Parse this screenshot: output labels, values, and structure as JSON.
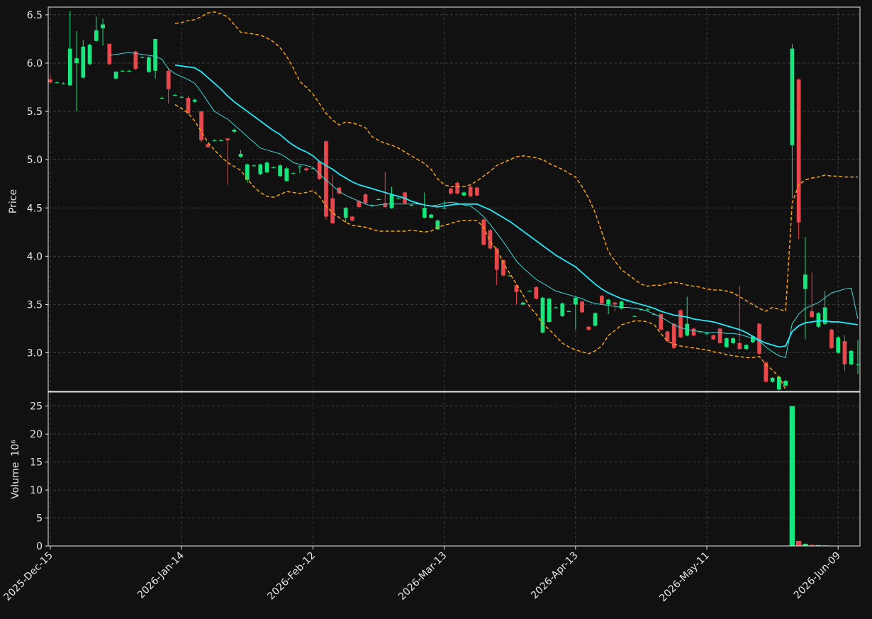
{
  "chart_data": {
    "type": "candlestick",
    "ylabel": "Price",
    "volume_label": "Volume",
    "volume_scale": "10⁶",
    "up_color": "#17e67c",
    "down_color": "#e8474b",
    "grid": true,
    "ylim": [
      2.6,
      6.58
    ],
    "yticks": [
      {
        "value": 3,
        "label": "3.0"
      },
      3.5,
      {
        "value": 4,
        "label": "4.0"
      },
      4.5,
      {
        "value": 5,
        "label": "5.0"
      },
      5.5,
      {
        "value": 6,
        "label": "6.0"
      },
      6.5
    ],
    "volume_ylim": [
      0,
      27.5
    ],
    "volume_yticks": [
      0,
      5,
      10,
      15,
      20,
      25
    ],
    "categories": [
      "2025-Dec-15",
      null,
      null,
      null,
      null,
      null,
      null,
      null,
      null,
      null,
      null,
      null,
      null,
      null,
      null,
      null,
      null,
      null,
      null,
      null,
      "2026-Jan-14",
      null,
      null,
      null,
      null,
      null,
      null,
      null,
      null,
      null,
      null,
      null,
      null,
      null,
      null,
      null,
      null,
      null,
      null,
      null,
      "2026-Feb-12",
      null,
      null,
      null,
      null,
      null,
      null,
      null,
      null,
      null,
      null,
      null,
      null,
      null,
      null,
      null,
      null,
      null,
      null,
      null,
      "2026-Mar-13",
      null,
      null,
      null,
      null,
      null,
      null,
      null,
      null,
      null,
      null,
      null,
      null,
      null,
      null,
      null,
      null,
      null,
      null,
      null,
      "2026-Apr-13",
      null,
      null,
      null,
      null,
      null,
      null,
      null,
      null,
      null,
      null,
      null,
      null,
      null,
      null,
      null,
      null,
      null,
      null,
      null,
      "2026-May-11",
      null,
      null,
      null,
      null,
      null,
      null,
      null,
      null,
      null,
      null,
      null,
      null,
      null,
      null,
      null,
      null,
      null,
      null,
      null,
      "2026-Jun-09",
      null,
      null,
      null
    ],
    "open": [
      5.83,
      5.8,
      5.79,
      5.77,
      6.0,
      5.85,
      5.99,
      6.23,
      6.36,
      6.2,
      5.84,
      5.92,
      5.92,
      6.12,
      6.06,
      5.91,
      5.92,
      5.64,
      5.92,
      5.67,
      5.65,
      5.64,
      5.6,
      5.5,
      5.16,
      5.2,
      5.2,
      5.22,
      5.29,
      5.03,
      4.79,
      4.94,
      4.85,
      4.87,
      4.92,
      4.83,
      4.78,
      4.86,
      4.93,
      4.91,
      4.91,
      4.98,
      5.19,
      4.6,
      4.71,
      4.4,
      4.41,
      4.57,
      4.64,
      4.53,
      4.59,
      4.55,
      4.5,
      4.6,
      4.66,
      4.53,
      4.55,
      4.4,
      4.4,
      4.28,
      4.5,
      4.7,
      4.76,
      4.63,
      4.72,
      4.71,
      4.38,
      4.27,
      4.08,
      3.96,
      3.8,
      3.7,
      3.5,
      3.64,
      3.68,
      3.21,
      3.32,
      3.47,
      3.38,
      3.43,
      3.5,
      3.53,
      3.27,
      3.28,
      3.59,
      3.5,
      3.52,
      3.46,
      3.54,
      3.38,
      3.45,
      3.45,
      3.4,
      3.4,
      3.22,
      3.3,
      3.44,
      3.18,
      3.25,
      3.22,
      3.2,
      3.18,
      3.25,
      3.06,
      3.1,
      3.1,
      3.04,
      3.11,
      3.3,
      2.9,
      2.7,
      2.62,
      2.66,
      5.15,
      5.83,
      3.66,
      3.43,
      3.27,
      3.3,
      3.24,
      3.0,
      3.12,
      2.88,
      2.88
    ],
    "high": [
      5.88,
      5.81,
      5.8,
      6.54,
      6.33,
      6.24,
      6.2,
      6.48,
      6.46,
      6.2,
      5.92,
      5.93,
      5.93,
      6.13,
      6.07,
      6.07,
      6.25,
      5.65,
      5.95,
      5.68,
      5.66,
      5.66,
      5.63,
      5.5,
      5.17,
      5.21,
      5.21,
      5.22,
      5.32,
      5.1,
      4.96,
      4.95,
      4.96,
      4.98,
      4.93,
      4.95,
      4.92,
      4.87,
      4.94,
      4.92,
      4.92,
      4.99,
      5.2,
      4.84,
      4.72,
      4.51,
      4.42,
      4.58,
      4.65,
      4.54,
      4.6,
      4.87,
      4.72,
      4.61,
      4.67,
      4.54,
      4.56,
      4.66,
      4.44,
      4.38,
      4.57,
      4.71,
      4.78,
      4.67,
      4.73,
      4.72,
      4.39,
      4.28,
      4.09,
      3.97,
      3.81,
      3.71,
      3.53,
      3.65,
      3.69,
      3.58,
      3.57,
      3.48,
      3.52,
      3.44,
      3.58,
      3.54,
      3.28,
      3.42,
      3.6,
      3.56,
      3.53,
      3.54,
      3.55,
      3.39,
      3.46,
      3.46,
      3.41,
      3.41,
      3.23,
      3.31,
      3.45,
      3.58,
      3.26,
      3.23,
      3.21,
      3.19,
      3.26,
      3.16,
      3.16,
      3.69,
      3.09,
      3.18,
      3.31,
      2.91,
      2.75,
      2.76,
      2.72,
      6.2,
      5.84,
      4.2,
      3.83,
      3.42,
      3.64,
      3.25,
      3.17,
      3.18,
      3.03,
      3.13
    ],
    "low": [
      5.79,
      5.79,
      5.78,
      5.76,
      5.5,
      5.84,
      5.98,
      6.22,
      6.18,
      5.98,
      5.83,
      5.91,
      5.91,
      5.93,
      6.05,
      5.9,
      5.84,
      5.63,
      5.58,
      5.66,
      5.64,
      5.47,
      5.59,
      5.18,
      5.12,
      5.19,
      5.19,
      4.74,
      5.28,
      5.02,
      4.76,
      4.93,
      4.84,
      4.86,
      4.91,
      4.82,
      4.77,
      4.85,
      4.86,
      4.88,
      4.9,
      4.79,
      4.38,
      4.33,
      4.64,
      4.35,
      4.36,
      4.5,
      4.54,
      4.52,
      4.58,
      4.5,
      4.49,
      4.59,
      4.54,
      4.52,
      4.54,
      4.39,
      4.39,
      4.27,
      4.49,
      4.64,
      4.64,
      4.62,
      4.61,
      4.62,
      4.11,
      4.07,
      3.7,
      3.79,
      3.79,
      3.5,
      3.49,
      3.63,
      3.55,
      3.2,
      3.31,
      3.46,
      3.37,
      3.42,
      3.24,
      3.41,
      3.23,
      3.27,
      3.5,
      3.4,
      3.43,
      3.45,
      3.53,
      3.37,
      3.44,
      3.44,
      3.39,
      3.23,
      3.11,
      3.04,
      3.15,
      3.17,
      3.17,
      3.21,
      3.19,
      3.13,
      3.09,
      3.05,
      3.09,
      3.03,
      3.03,
      3.1,
      2.98,
      2.69,
      2.69,
      2.61,
      2.65,
      4.6,
      4.18,
      3.14,
      3.36,
      3.26,
      3.29,
      3.04,
      2.99,
      2.81,
      2.87,
      2.78
    ],
    "close": [
      5.8,
      5.8,
      5.79,
      6.15,
      6.05,
      6.17,
      6.19,
      6.34,
      6.4,
      5.99,
      5.91,
      5.92,
      5.92,
      5.94,
      6.06,
      6.06,
      6.25,
      5.64,
      5.73,
      5.67,
      5.65,
      5.48,
      5.62,
      5.2,
      5.13,
      5.2,
      5.2,
      5.2,
      5.31,
      5.06,
      4.95,
      4.94,
      4.95,
      4.97,
      4.92,
      4.94,
      4.91,
      4.86,
      4.93,
      4.89,
      4.91,
      4.8,
      4.41,
      4.34,
      4.65,
      4.5,
      4.37,
      4.51,
      4.55,
      4.53,
      4.59,
      4.51,
      4.64,
      4.6,
      4.55,
      4.53,
      4.55,
      4.5,
      4.43,
      4.37,
      4.5,
      4.65,
      4.65,
      4.66,
      4.62,
      4.63,
      4.12,
      4.08,
      3.86,
      3.8,
      3.8,
      3.63,
      3.52,
      3.64,
      3.56,
      3.57,
      3.56,
      3.47,
      3.51,
      3.43,
      3.57,
      3.42,
      3.24,
      3.41,
      3.51,
      3.55,
      3.5,
      3.53,
      3.54,
      3.38,
      3.45,
      3.45,
      3.4,
      3.24,
      3.12,
      3.05,
      3.16,
      3.3,
      3.18,
      3.22,
      3.2,
      3.14,
      3.1,
      3.15,
      3.15,
      3.04,
      3.08,
      3.17,
      2.99,
      2.7,
      2.74,
      2.75,
      2.71,
      6.15,
      4.35,
      3.81,
      3.37,
      3.41,
      3.47,
      3.05,
      3.16,
      2.88,
      3.02,
      2.88
    ],
    "volume": [
      0.05,
      0.05,
      0.05,
      0.05,
      0.05,
      0.05,
      0.05,
      0.05,
      0.05,
      0.05,
      0.05,
      0.05,
      0.05,
      0.05,
      0.05,
      0.05,
      0.05,
      0.05,
      0.05,
      0.05,
      0.05,
      0.05,
      0.05,
      0.05,
      0.05,
      0.05,
      0.05,
      0.05,
      0.05,
      0.05,
      0.05,
      0.05,
      0.05,
      0.05,
      0.05,
      0.05,
      0.05,
      0.05,
      0.05,
      0.05,
      0.05,
      0.05,
      0.05,
      0.05,
      0.05,
      0.05,
      0.05,
      0.05,
      0.05,
      0.05,
      0.05,
      0.05,
      0.05,
      0.05,
      0.05,
      0.05,
      0.05,
      0.05,
      0.05,
      0.05,
      0.05,
      0.05,
      0.05,
      0.05,
      0.05,
      0.05,
      0.05,
      0.05,
      0.05,
      0.05,
      0.05,
      0.05,
      0.05,
      0.05,
      0.05,
      0.05,
      0.05,
      0.05,
      0.05,
      0.05,
      0.05,
      0.05,
      0.05,
      0.05,
      0.05,
      0.05,
      0.05,
      0.05,
      0.05,
      0.05,
      0.05,
      0.05,
      0.05,
      0.05,
      0.05,
      0.05,
      0.05,
      0.05,
      0.05,
      0.05,
      0.05,
      0.05,
      0.05,
      0.05,
      0.05,
      0.05,
      0.05,
      0.05,
      0.05,
      0.05,
      0.05,
      0.05,
      0.05,
      25.0,
      0.9,
      0.4,
      0.2,
      0.15,
      0.1,
      0.05,
      0.05,
      0.05,
      0.05,
      0.05
    ],
    "overlays": [
      {
        "color": "#20e8f8",
        "line_style": "solid",
        "line_width": 1.8,
        "values": [
          null,
          null,
          null,
          null,
          null,
          null,
          null,
          null,
          null,
          null,
          null,
          null,
          null,
          null,
          null,
          null,
          null,
          null,
          null,
          5.98,
          5.97,
          5.96,
          5.95,
          5.91,
          5.85,
          5.79,
          5.73,
          5.66,
          5.6,
          5.55,
          5.5,
          5.45,
          5.4,
          5.35,
          5.3,
          5.26,
          5.2,
          5.15,
          5.11,
          5.08,
          5.04,
          4.98,
          4.94,
          4.9,
          4.85,
          4.81,
          4.77,
          4.74,
          4.72,
          4.7,
          4.68,
          4.66,
          4.64,
          4.62,
          4.6,
          4.57,
          4.55,
          4.53,
          4.52,
          4.51,
          4.52,
          4.53,
          4.54,
          4.54,
          4.54,
          4.54,
          4.51,
          4.48,
          4.44,
          4.4,
          4.36,
          4.31,
          4.26,
          4.21,
          4.16,
          4.11,
          4.06,
          4.01,
          3.97,
          3.93,
          3.89,
          3.83,
          3.77,
          3.71,
          3.66,
          3.62,
          3.59,
          3.56,
          3.54,
          3.52,
          3.5,
          3.48,
          3.46,
          3.43,
          3.41,
          3.39,
          3.38,
          3.37,
          3.35,
          3.34,
          3.33,
          3.32,
          3.3,
          3.28,
          3.26,
          3.24,
          3.21,
          3.17,
          3.13,
          3.1,
          3.08,
          3.06,
          3.07,
          3.22,
          3.28,
          3.31,
          3.32,
          3.33,
          3.33,
          3.32,
          3.32,
          3.31,
          3.3,
          3.29
        ]
      },
      {
        "color": "#3fd4d4",
        "line_style": "solid",
        "line_width": 1,
        "values": [
          null,
          null,
          null,
          null,
          null,
          null,
          null,
          null,
          null,
          6.08,
          6.09,
          6.1,
          6.11,
          6.1,
          6.09,
          6.08,
          6.07,
          6.04,
          5.94,
          5.89,
          5.86,
          5.83,
          5.79,
          5.7,
          5.6,
          5.5,
          5.46,
          5.42,
          5.36,
          5.3,
          5.24,
          5.18,
          5.12,
          5.1,
          5.08,
          5.06,
          5.02,
          4.97,
          4.95,
          4.94,
          4.92,
          4.85,
          4.79,
          4.73,
          4.67,
          4.63,
          4.6,
          4.57,
          4.54,
          4.52,
          4.53,
          4.54,
          4.54,
          4.54,
          4.54,
          4.54,
          4.54,
          4.53,
          4.52,
          4.53,
          4.55,
          4.56,
          4.55,
          4.53,
          4.52,
          4.47,
          4.41,
          4.33,
          4.24,
          4.15,
          4.05,
          3.95,
          3.88,
          3.82,
          3.76,
          3.72,
          3.68,
          3.64,
          3.62,
          3.6,
          3.58,
          3.56,
          3.53,
          3.51,
          3.5,
          3.49,
          3.48,
          3.47,
          3.47,
          3.46,
          3.45,
          3.43,
          3.4,
          3.37,
          3.33,
          3.29,
          3.26,
          3.24,
          3.23,
          3.22,
          3.21,
          3.21,
          3.21,
          3.2,
          3.2,
          3.19,
          3.17,
          3.15,
          3.12,
          3.06,
          3.01,
          2.97,
          2.95,
          3.3,
          3.4,
          3.46,
          3.49,
          3.52,
          3.57,
          3.62,
          3.64,
          3.66,
          3.67,
          3.35
        ]
      },
      {
        "color": "#f5a00a",
        "line_style": "dashed",
        "line_width": 1.5,
        "values": [
          null,
          null,
          null,
          null,
          null,
          null,
          null,
          null,
          null,
          null,
          null,
          null,
          null,
          null,
          null,
          null,
          null,
          null,
          null,
          6.41,
          6.42,
          6.44,
          6.45,
          6.48,
          6.52,
          6.53,
          6.51,
          6.48,
          6.4,
          6.32,
          6.31,
          6.3,
          6.29,
          6.26,
          6.22,
          6.16,
          6.07,
          5.95,
          5.81,
          5.75,
          5.68,
          5.58,
          5.48,
          5.41,
          5.36,
          5.39,
          5.38,
          5.36,
          5.33,
          5.24,
          5.2,
          5.17,
          5.15,
          5.12,
          5.08,
          5.04,
          5.0,
          4.96,
          4.9,
          4.8,
          4.74,
          4.72,
          4.72,
          4.72,
          4.74,
          4.78,
          4.83,
          4.88,
          4.94,
          4.97,
          5.0,
          5.03,
          5.04,
          5.03,
          5.02,
          5.0,
          4.96,
          4.93,
          4.9,
          4.86,
          4.82,
          4.72,
          4.6,
          4.45,
          4.25,
          4.05,
          3.95,
          3.86,
          3.81,
          3.76,
          3.71,
          3.69,
          3.7,
          3.7,
          3.72,
          3.73,
          3.72,
          3.7,
          3.69,
          3.68,
          3.66,
          3.65,
          3.65,
          3.64,
          3.62,
          3.58,
          3.54,
          3.5,
          3.46,
          3.43,
          3.47,
          3.45,
          3.43,
          4.55,
          4.74,
          4.79,
          4.81,
          4.82,
          4.84,
          4.83,
          4.83,
          4.82,
          4.82,
          4.82
        ]
      },
      {
        "color": "#f5a00a",
        "line_style": "dashed",
        "line_width": 1.5,
        "values": [
          null,
          null,
          null,
          null,
          null,
          null,
          null,
          null,
          null,
          null,
          null,
          null,
          null,
          null,
          null,
          null,
          null,
          null,
          null,
          5.57,
          5.53,
          5.48,
          5.4,
          5.29,
          5.18,
          5.1,
          5.03,
          4.97,
          4.93,
          4.89,
          4.8,
          4.72,
          4.66,
          4.62,
          4.61,
          4.64,
          4.67,
          4.66,
          4.65,
          4.66,
          4.68,
          4.62,
          4.52,
          4.45,
          4.4,
          4.35,
          4.32,
          4.31,
          4.3,
          4.28,
          4.26,
          4.26,
          4.26,
          4.26,
          4.26,
          4.27,
          4.26,
          4.25,
          4.26,
          4.3,
          4.32,
          4.34,
          4.36,
          4.37,
          4.37,
          4.37,
          4.3,
          4.15,
          4.07,
          3.93,
          3.82,
          3.71,
          3.6,
          3.48,
          3.4,
          3.3,
          3.24,
          3.17,
          3.1,
          3.06,
          3.03,
          3.01,
          2.99,
          3.02,
          3.07,
          3.18,
          3.23,
          3.29,
          3.31,
          3.33,
          3.33,
          3.32,
          3.29,
          3.2,
          3.12,
          3.09,
          3.07,
          3.06,
          3.05,
          3.04,
          3.03,
          3.01,
          3.0,
          2.98,
          2.97,
          2.96,
          2.95,
          2.95,
          2.96,
          2.88,
          2.82,
          2.75,
          2.62,
          null,
          null,
          null,
          null,
          null,
          null,
          null,
          null,
          null,
          null,
          null
        ]
      }
    ]
  }
}
